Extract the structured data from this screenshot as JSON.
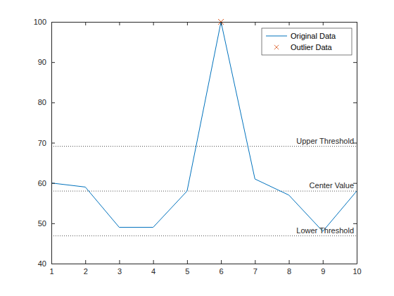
{
  "chart_data": {
    "type": "line",
    "x": [
      1,
      2,
      3,
      4,
      5,
      6,
      7,
      8,
      9,
      10
    ],
    "series": [
      {
        "name": "Original Data",
        "color": "#0072bd",
        "type": "line",
        "values": [
          60,
          59,
          49,
          49,
          58,
          100,
          61,
          57,
          48,
          58
        ]
      },
      {
        "name": "Outlier Data",
        "color": "#d95319",
        "type": "scatter",
        "marker": "x",
        "values": [
          null,
          null,
          null,
          null,
          null,
          100,
          null,
          null,
          null,
          null
        ]
      }
    ],
    "hlines": [
      {
        "label": "Upper Threshold",
        "value": 69.12,
        "line_style": "dotted"
      },
      {
        "label": "Center Value",
        "value": 58,
        "line_style": "dotted"
      },
      {
        "label": "Lower Threshold",
        "value": 46.88,
        "line_style": "dotted"
      }
    ],
    "xlim": [
      1,
      10
    ],
    "xticks": [
      1,
      2,
      3,
      4,
      5,
      6,
      7,
      8,
      9,
      10
    ],
    "ylim": [
      40,
      100
    ],
    "yticks": [
      40,
      50,
      60,
      70,
      80,
      90,
      100
    ],
    "grid": false,
    "legend": "northeast"
  }
}
